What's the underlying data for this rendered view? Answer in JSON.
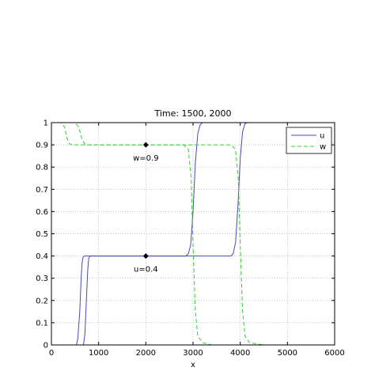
{
  "chart_data": {
    "type": "line",
    "title": "Time: 1500, 2000",
    "xlabel": "x",
    "ylabel": "",
    "xlim": [
      0,
      6000
    ],
    "ylim": [
      0,
      1
    ],
    "xticks": [
      0,
      1000,
      2000,
      3000,
      4000,
      5000,
      6000
    ],
    "yticks": [
      0,
      0.1,
      0.2,
      0.3,
      0.4,
      0.5,
      0.6,
      0.7,
      0.8,
      0.9,
      1
    ],
    "grid": true,
    "legend_position": "top-right",
    "legend": [
      "u",
      "w"
    ],
    "series": [
      {
        "name": "u",
        "style": "solid",
        "color": "#4a4ab8",
        "x": [
          0,
          530,
          560,
          600,
          630,
          650,
          670,
          700,
          2850,
          2900,
          2950,
          3000,
          3050,
          3100,
          3150,
          3200,
          6000
        ],
        "y": [
          0,
          0,
          0.03,
          0.15,
          0.3,
          0.37,
          0.395,
          0.4,
          0.4,
          0.41,
          0.45,
          0.6,
          0.82,
          0.95,
          0.99,
          1,
          1
        ]
      },
      {
        "name": "u",
        "style": "solid",
        "color": "#4a4ab8",
        "x": [
          0,
          680,
          710,
          740,
          770,
          790,
          820,
          3800,
          3850,
          3900,
          3950,
          4000,
          4050,
          4100,
          4150,
          6000
        ],
        "y": [
          0,
          0,
          0.05,
          0.2,
          0.34,
          0.39,
          0.4,
          0.4,
          0.41,
          0.46,
          0.62,
          0.84,
          0.96,
          0.995,
          1,
          1
        ]
      },
      {
        "name": "w",
        "style": "dashed",
        "color": "#33cc33",
        "x": [
          0,
          500,
          580,
          640,
          700,
          800,
          2800,
          2900,
          2960,
          3000,
          3050,
          3100,
          3200,
          3400,
          3600,
          6000
        ],
        "y": [
          1,
          1,
          0.98,
          0.93,
          0.905,
          0.9,
          0.9,
          0.88,
          0.75,
          0.45,
          0.15,
          0.04,
          0.01,
          0,
          0,
          0
        ]
      },
      {
        "name": "w",
        "style": "dashed",
        "color": "#33cc33",
        "x": [
          0,
          200,
          280,
          330,
          380,
          450,
          3800,
          3900,
          3960,
          4000,
          4050,
          4100,
          4200,
          4500,
          5000,
          6000
        ],
        "y": [
          1,
          1,
          0.98,
          0.93,
          0.905,
          0.9,
          0.9,
          0.88,
          0.74,
          0.45,
          0.15,
          0.04,
          0.01,
          0,
          0,
          0
        ]
      }
    ],
    "annotations": [
      {
        "text": "w=0.9",
        "x": 2000,
        "y": 0.9
      },
      {
        "text": "u=0.4",
        "x": 2000,
        "y": 0.4
      }
    ]
  }
}
